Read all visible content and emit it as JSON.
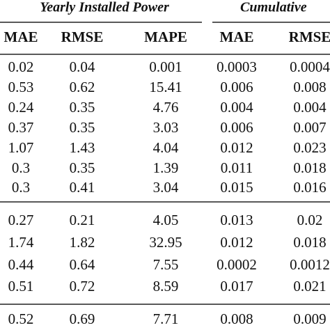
{
  "header": {
    "group_titles": [
      "Yearly Installed Power",
      "Cumulative"
    ],
    "columns": [
      "MAE",
      "RMSE",
      "MAPE",
      "MAE",
      "RMSE"
    ]
  },
  "table": {
    "groups": [
      [
        [
          "0.02",
          "0.04",
          "0.001",
          "0.0003",
          "0.0004"
        ],
        [
          "0.53",
          "0.62",
          "15.41",
          "0.006",
          "0.008"
        ],
        [
          "0.24",
          "0.35",
          "4.76",
          "0.004",
          "0.004"
        ],
        [
          "0.37",
          "0.35",
          "3.03",
          "0.006",
          "0.007"
        ],
        [
          "1.07",
          "1.43",
          "4.04",
          "0.012",
          "0.023"
        ],
        [
          "0.3",
          "0.35",
          "1.39",
          "0.011",
          "0.018"
        ],
        [
          "0.3",
          "0.41",
          "3.04",
          "0.015",
          "0.016"
        ]
      ],
      [
        [
          "0.27",
          "0.21",
          "4.05",
          "0.013",
          "0.02"
        ],
        [
          "1.74",
          "1.82",
          "32.95",
          "0.012",
          "0.018"
        ],
        [
          "0.44",
          "0.64",
          "7.55",
          "0.0002",
          "0.0012"
        ],
        [
          "0.51",
          "0.72",
          "8.59",
          "0.017",
          "0.021"
        ]
      ],
      [
        [
          "0.52",
          "0.69",
          "7.71",
          "0.008",
          "0.009"
        ]
      ]
    ]
  }
}
